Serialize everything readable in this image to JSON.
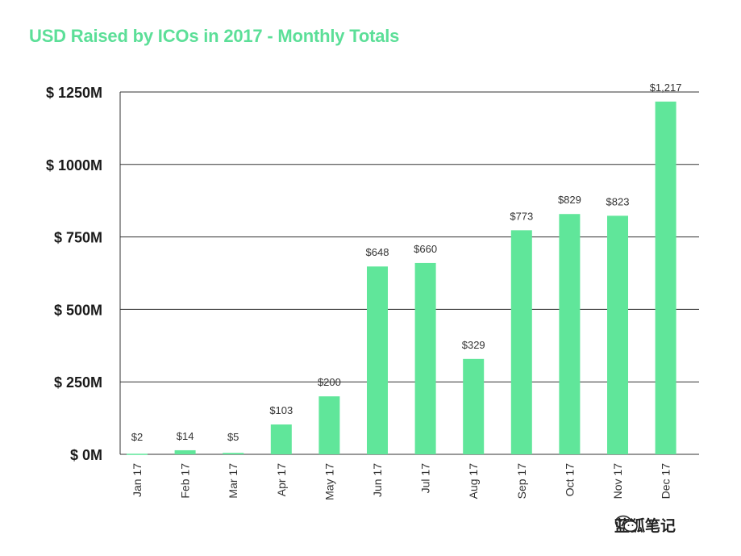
{
  "chart_data": {
    "type": "bar",
    "title": "USD Raised by ICOs in 2017 - Monthly Totals",
    "categories": [
      "Jan 17",
      "Feb 17",
      "Mar 17",
      "Apr 17",
      "May 17",
      "Jun 17",
      "Jul 17",
      "Aug 17",
      "Sep 17",
      "Oct 17",
      "Nov 17",
      "Dec 17"
    ],
    "values": [
      2,
      14,
      5,
      103,
      200,
      648,
      660,
      329,
      773,
      829,
      823,
      1217
    ],
    "data_labels": [
      "$2",
      "$14",
      "$5",
      "$103",
      "$200",
      "$648",
      "$660",
      "$329",
      "$773",
      "$829",
      "$823",
      "$1,217"
    ],
    "y_ticks": [
      0,
      250,
      500,
      750,
      1000,
      1250
    ],
    "y_tick_labels": [
      "$ 0M",
      "$ 250M",
      "$ 500M",
      "$ 750M",
      "$ 1000M",
      "$ 1250M"
    ],
    "ylim": [
      0,
      1250
    ],
    "xlabel": "",
    "ylabel": "",
    "grid": true,
    "legend": "none",
    "colors": {
      "bar": "#60e69a",
      "title": "#5cdf98",
      "grid": "#333333"
    }
  },
  "watermark": {
    "text": "蓝狐笔记",
    "icon": "wechat-icon"
  }
}
